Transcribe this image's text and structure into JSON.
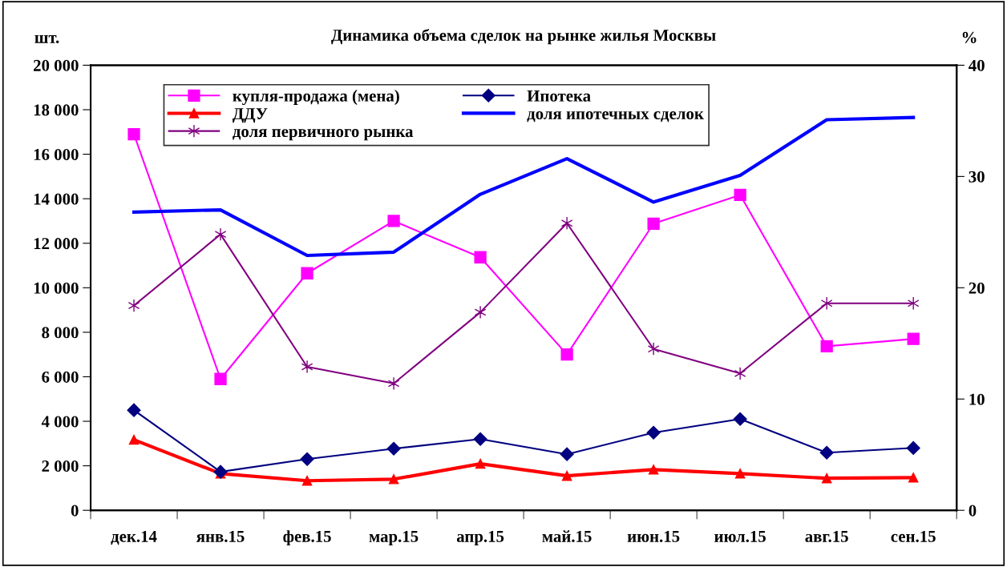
{
  "chart_data": {
    "type": "line",
    "title": "Динамика объема сделок на рынке жилья Москвы",
    "ylabel": "шт.",
    "y2label": "%",
    "categories": [
      "дек.14",
      "янв.15",
      "фев.15",
      "мар.15",
      "апр.15",
      "май.15",
      "июн.15",
      "июл.15",
      "авг.15",
      "сен.15"
    ],
    "series": [
      {
        "name": "купля-продажа (мена)",
        "color": "#ff00ff",
        "marker": "square",
        "values": [
          16900,
          5900,
          10650,
          13000,
          11370,
          7000,
          12880,
          14170,
          7370,
          7700
        ]
      },
      {
        "name": "Ипотека",
        "color": "#000080",
        "marker": "diamond",
        "values": [
          4500,
          1730,
          2300,
          2770,
          3200,
          2520,
          3490,
          4100,
          2590,
          2800
        ]
      },
      {
        "name": "ДДУ",
        "color": "#ff0000",
        "marker": "triangle",
        "values": [
          3170,
          1650,
          1330,
          1400,
          2090,
          1550,
          1830,
          1650,
          1440,
          1470
        ]
      },
      {
        "name": "доля ипотечных сделок",
        "color": "#0000ff",
        "marker": "none",
        "axis": "y2",
        "values": [
          26.8,
          27.0,
          22.9,
          23.2,
          28.4,
          31.6,
          27.7,
          30.1,
          35.1,
          35.3
        ]
      },
      {
        "name": "доля первичного рынка",
        "color": "#800080",
        "marker": "cross",
        "axis": "y2",
        "values": [
          18.4,
          24.8,
          12.9,
          11.4,
          17.8,
          25.8,
          14.5,
          12.3,
          18.6,
          18.6
        ]
      }
    ],
    "ylim": [
      0,
      20000
    ],
    "yticks": [
      0,
      {
        "value": 2000,
        "label": "2 000"
      },
      {
        "value": 4000,
        "label": "4 000"
      },
      {
        "value": 6000,
        "label": "6 000"
      },
      {
        "value": 8000,
        "label": "8 000"
      },
      {
        "value": 10000,
        "label": "10 000"
      },
      {
        "value": 12000,
        "label": "12 000"
      },
      {
        "value": 14000,
        "label": "14 000"
      },
      {
        "value": 16000,
        "label": "16 000"
      },
      {
        "value": 18000,
        "label": "18 000"
      },
      {
        "value": 20000,
        "label": "20 000"
      }
    ],
    "y2lim": [
      0,
      40
    ],
    "y2ticks": [
      0,
      10,
      20,
      30,
      40
    ],
    "legend": "top left",
    "grid": false
  }
}
